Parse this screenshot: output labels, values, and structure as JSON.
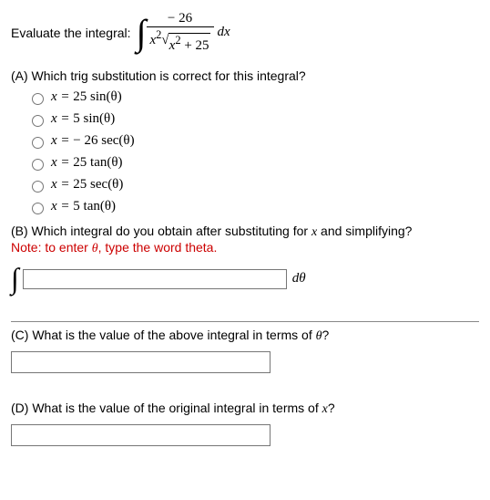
{
  "header": {
    "prompt": "Evaluate the integral:",
    "integral": {
      "numerator_sign": "−",
      "numerator_coeff": "26",
      "denominator_coeff": "x",
      "denominator_exp": "2",
      "radicand_var": "x",
      "radicand_exp": "2",
      "radicand_plus": " + ",
      "radicand_const": "25",
      "dx": "dx"
    }
  },
  "partA": {
    "prompt": "(A) Which trig substitution is correct for this integral?",
    "math": {
      "x_eq": "x = ",
      "minus": " − ",
      "sin": "sin",
      "sec": "sec",
      "tan": "tan",
      "theta": "(θ)",
      "c25": "25",
      "c5": "5",
      "c26": "26"
    }
  },
  "partB": {
    "prompt_text": "(B) Which integral do you obtain after substituting for ",
    "prompt_var": "x",
    "prompt_tail": " and simplifying?",
    "note_pre": "Note: to enter ",
    "note_theta": "θ",
    "note_post": ", type the word theta.",
    "dtheta": "dθ"
  },
  "partC": {
    "prompt_pre": "(C) What is the value of the above integral in terms of ",
    "prompt_var": "θ",
    "prompt_post": "?"
  },
  "partD": {
    "prompt_pre": "(D) What is the value of the original integral in terms of ",
    "prompt_var": "x",
    "prompt_post": "?"
  }
}
